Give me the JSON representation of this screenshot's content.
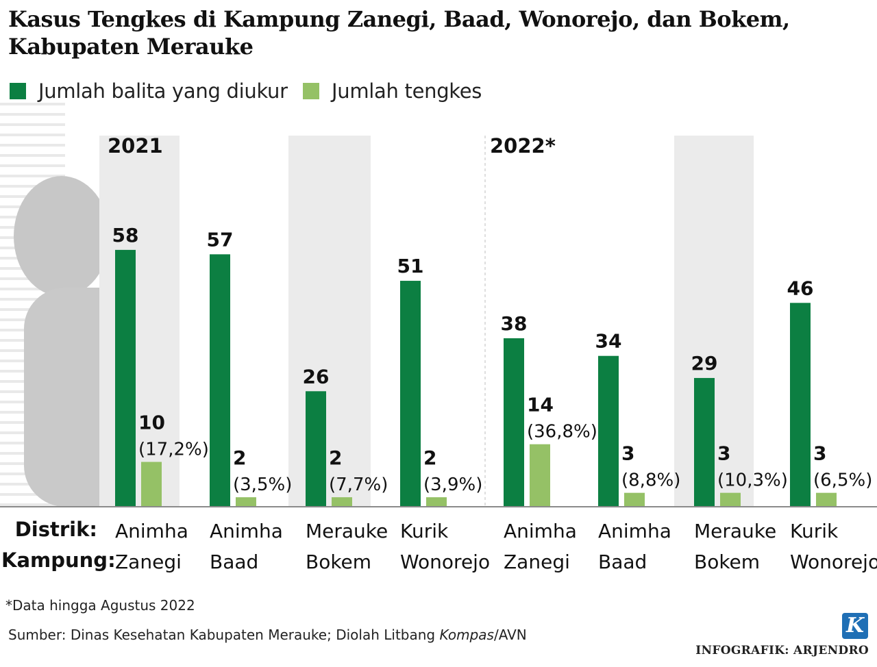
{
  "title": "Kasus Tengkes di Kampung Zanegi, Baad, Wonorejo, dan Bokem, Kabupaten Merauke",
  "legend": {
    "series1": "Jumlah balita yang diukur",
    "series2": "Jumlah tengkes"
  },
  "years": [
    "2021",
    "2022*"
  ],
  "row_labels": {
    "distrik": "Distrik:",
    "kampung": "Kampung:"
  },
  "footnote": "*Data hingga Agustus 2022",
  "source_prefix": "Sumber: Dinas Kesehatan Kabupaten Merauke; Diolah Litbang ",
  "source_italic": "Kompas",
  "source_suffix": "/AVN",
  "credit": "INFOGRAFIK: ARJENDRO",
  "logo_letter": "K",
  "colors": {
    "dark_green": "#0c7f42",
    "light_green": "#95c166",
    "band_gray": "#ebebeb"
  },
  "chart_data": {
    "type": "bar",
    "title": "Kasus Tengkes di Kampung Zanegi, Baad, Wonorejo, dan Bokem, Kabupaten Merauke",
    "groups": [
      {
        "year": "2021",
        "distrik": "Animha",
        "kampung": "Zanegi"
      },
      {
        "year": "2021",
        "distrik": "Animha",
        "kampung": "Baad"
      },
      {
        "year": "2021",
        "distrik": "Merauke",
        "kampung": "Bokem"
      },
      {
        "year": "2021",
        "distrik": "Kurik",
        "kampung": "Wonorejo"
      },
      {
        "year": "2022*",
        "distrik": "Animha",
        "kampung": "Zanegi"
      },
      {
        "year": "2022*",
        "distrik": "Animha",
        "kampung": "Baad"
      },
      {
        "year": "2022*",
        "distrik": "Merauke",
        "kampung": "Bokem"
      },
      {
        "year": "2022*",
        "distrik": "Kurik",
        "kampung": "Wonorejo"
      }
    ],
    "series": [
      {
        "name": "Jumlah balita yang diukur",
        "values": [
          58,
          57,
          26,
          51,
          38,
          34,
          29,
          46
        ]
      },
      {
        "name": "Jumlah tengkes",
        "values": [
          10,
          2,
          2,
          2,
          14,
          3,
          3,
          3
        ],
        "percent_labels": [
          "(17,2%)",
          "(3,5%)",
          "(7,7%)",
          "(3,9%)",
          "(36,8%)",
          "(8,8%)",
          "(10,3%)",
          "(6,5%)"
        ]
      }
    ],
    "ylim": [
      0,
      60
    ],
    "legend_position": "top-left",
    "grid": false
  }
}
